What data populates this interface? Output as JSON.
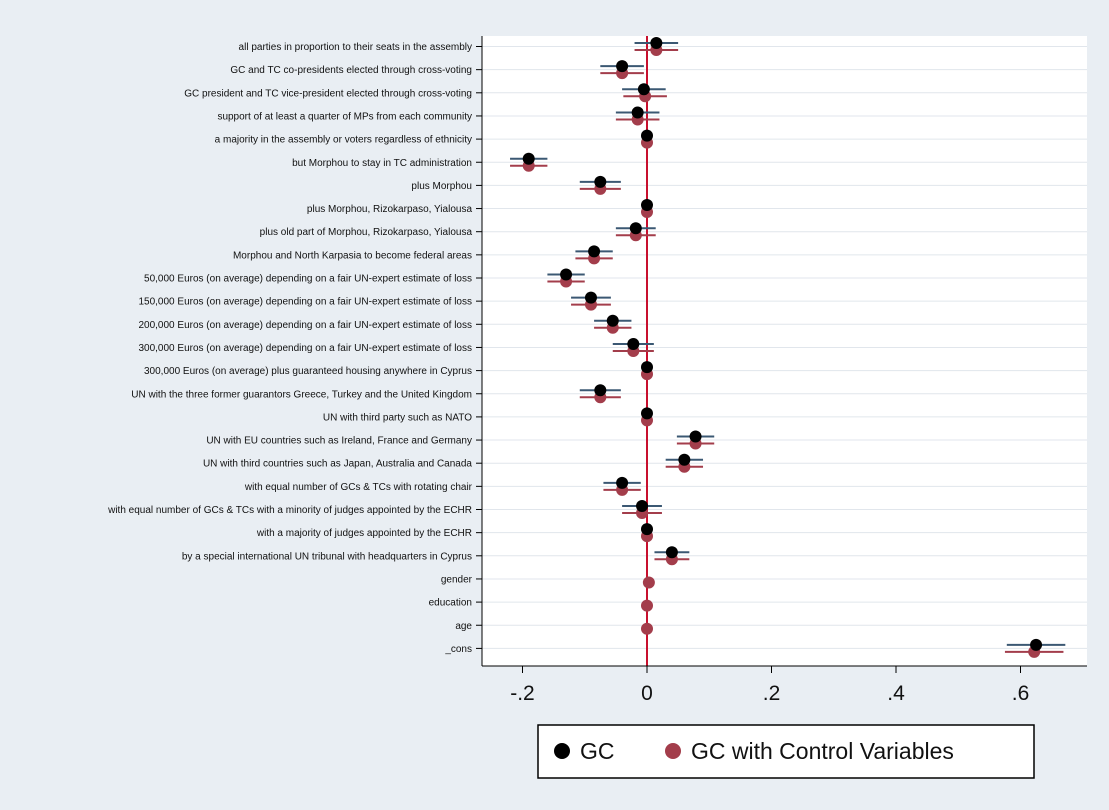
{
  "colors": {
    "outer_background": "#e9eef3",
    "plot_background": "#ffffff",
    "gc": "#000000",
    "gc_ci": "#3b5873",
    "gc_ctrl": "#a33d4b",
    "gc_ctrl_ci": "#a33d4b",
    "zero_line": "#c8102e",
    "grid": "#e1e6ec"
  },
  "chart_data": {
    "type": "scatter",
    "subtype": "coefficient plot (dot-and-whisker)",
    "orientation": "horizontal",
    "title": "",
    "xlabel": "",
    "ylabel": "",
    "xlim": [
      -0.25,
      0.7
    ],
    "x_ticks": [
      -0.2,
      0,
      0.2,
      0.4,
      0.6
    ],
    "x_tick_labels": [
      "-.2",
      "0",
      ".2",
      ".4",
      ".6"
    ],
    "reference_line": 0,
    "grid": "horizontal",
    "legend_position": "bottom",
    "categories": [
      "all parties in proportion to their seats in the assembly",
      "GC and TC co-presidents elected through cross-voting",
      "GC president and TC vice-president elected through cross-voting",
      "support of at least a quarter of MPs from each community",
      "a majority in the assembly or voters regardless of ethnicity",
      "but Morphou to stay in TC administration",
      "plus Morphou",
      "plus Morphou, Rizokarpaso, Yialousa",
      "plus old part of Morphou, Rizokarpaso, Yialousa",
      "Morphou and North Karpasia to become federal areas",
      "50,000 Euros (on average) depending on a fair UN-expert estimate of loss",
      "150,000 Euros (on average) depending on a fair UN-expert estimate of loss",
      "200,000 Euros (on average) depending on a fair UN-expert estimate of loss",
      "300,000 Euros (on average) depending on a fair UN-expert estimate of loss",
      "300,000 Euros (on average) plus guaranteed housing anywhere in Cyprus",
      "UN with the three former guarantors Greece, Turkey and the United Kingdom",
      "UN with third party such as NATO",
      "UN with EU countries such as Ireland, France and Germany",
      "UN with third countries such as Japan, Australia and Canada",
      "with equal number of GCs & TCs with rotating chair",
      "with equal number of GCs & TCs with a minority of judges appointed by the ECHR",
      "with a majority of judges appointed by the ECHR",
      "by a special international UN tribunal with headquarters in Cyprus",
      "gender",
      "education",
      "age",
      "_cons"
    ],
    "series": [
      {
        "name": "GC",
        "values": [
          0.015,
          -0.04,
          -0.005,
          -0.015,
          0,
          -0.19,
          -0.075,
          0,
          -0.018,
          -0.085,
          -0.13,
          -0.09,
          -0.055,
          -0.022,
          0,
          -0.075,
          0,
          0.078,
          0.06,
          -0.04,
          -0.008,
          0,
          0.04,
          null,
          null,
          null,
          0.625
        ],
        "ci_low": [
          -0.02,
          -0.075,
          -0.04,
          -0.05,
          null,
          -0.22,
          -0.108,
          null,
          -0.05,
          -0.115,
          -0.16,
          -0.122,
          -0.085,
          -0.055,
          null,
          -0.108,
          null,
          0.048,
          0.03,
          -0.07,
          -0.04,
          null,
          0.012,
          null,
          null,
          null,
          0.578
        ],
        "ci_high": [
          0.05,
          -0.005,
          0.03,
          0.02,
          null,
          -0.16,
          -0.042,
          null,
          0.014,
          -0.055,
          -0.1,
          -0.058,
          -0.025,
          0.011,
          null,
          -0.042,
          null,
          0.108,
          0.09,
          -0.01,
          0.024,
          null,
          0.068,
          null,
          null,
          null,
          0.672
        ]
      },
      {
        "name": "GC with Control Variables",
        "values": [
          0.015,
          -0.04,
          -0.003,
          -0.015,
          0,
          -0.19,
          -0.075,
          0,
          -0.018,
          -0.085,
          -0.13,
          -0.09,
          -0.055,
          -0.022,
          0,
          -0.075,
          0,
          0.078,
          0.06,
          -0.04,
          -0.008,
          0,
          0.04,
          0.003,
          0,
          0,
          0.622
        ],
        "ci_low": [
          -0.02,
          -0.075,
          -0.038,
          -0.05,
          null,
          -0.22,
          -0.108,
          null,
          -0.05,
          -0.115,
          -0.16,
          -0.122,
          -0.085,
          -0.055,
          null,
          -0.108,
          null,
          0.048,
          0.03,
          -0.07,
          -0.04,
          null,
          0.012,
          null,
          null,
          null,
          0.575
        ],
        "ci_high": [
          0.05,
          -0.005,
          0.032,
          0.02,
          null,
          -0.16,
          -0.042,
          null,
          0.014,
          -0.055,
          -0.1,
          -0.058,
          -0.025,
          0.011,
          null,
          -0.042,
          null,
          0.108,
          0.09,
          -0.01,
          0.024,
          null,
          0.068,
          null,
          null,
          null,
          0.669
        ]
      }
    ],
    "legend": [
      {
        "name": "GC",
        "marker": "circle",
        "color": "#000000"
      },
      {
        "name": "GC with Control Variables",
        "marker": "circle",
        "color": "#a33d4b"
      }
    ]
  }
}
